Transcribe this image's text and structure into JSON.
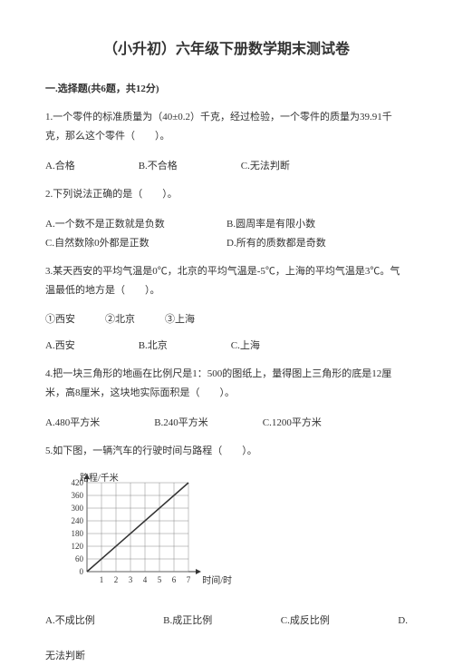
{
  "title": "（小升初）六年级下册数学期末测试卷",
  "section1": {
    "header": "一.选择题(共6题，共12分)",
    "q1": {
      "text": "1.一个零件的标准质量为（40±0.2）千克，经过检验，一个零件的质量为39.91千克，那么这个零件（　　）。",
      "a": "A.合格",
      "b": "B.不合格",
      "c": "C.无法判断"
    },
    "q2": {
      "text": "2.下列说法正确的是（　　）。",
      "a": "A.一个数不是正数就是负数",
      "b": "B.圆周率是有限小数",
      "c": "C.自然数除0外都是正数",
      "d": "D.所有的质数都是奇数"
    },
    "q3": {
      "text": "3.某天西安的平均气温是0℃，北京的平均气温是-5℃，上海的平均气温是3℃。气温最低的地方是（　　）。",
      "choices": "①西安　　　②北京　　　③上海",
      "a": "A.西安",
      "b": "B.北京",
      "c": "C.上海"
    },
    "q4": {
      "text": "4.把一块三角形的地画在比例尺是1：500的图纸上，量得图上三角形的底是12厘米，高8厘米，这块地实际面积是（　　）。",
      "a": "A.480平方米",
      "b": "B.240平方米",
      "c": "C.1200平方米"
    },
    "q5": {
      "text": "5.如下图，一辆汽车的行驶时间与路程（　　）。",
      "a": "A.不成比例",
      "b": "B.成正比例",
      "c": "C.成反比例",
      "d": "D.",
      "d2": "无法判断"
    }
  },
  "chart": {
    "y_label": "路程/千米",
    "x_label": "时间/时",
    "y_ticks": [
      "420",
      "360",
      "300",
      "240",
      "180",
      "120",
      "60",
      "0"
    ],
    "x_ticks": [
      "1",
      "2",
      "3",
      "4",
      "5",
      "6",
      "7"
    ],
    "grid_color": "#888888",
    "line_color": "#333333",
    "bg": "#ffffff",
    "font_size": 9,
    "y_max": 420,
    "x_max": 7,
    "line_points": [
      [
        0,
        0
      ],
      [
        7,
        420
      ]
    ]
  }
}
